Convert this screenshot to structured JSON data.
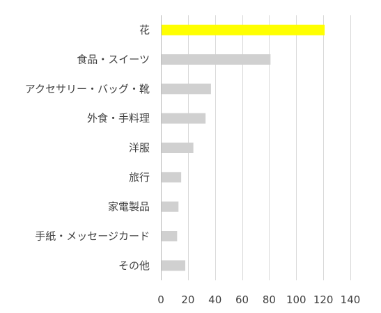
{
  "chart_data": {
    "type": "bar",
    "orientation": "horizontal",
    "categories": [
      "花",
      "食品・スイーツ",
      "アクセサリー・バッグ・靴",
      "外食・手料理",
      "洋服",
      "旅行",
      "家電製品",
      "手紙・メッセージカード",
      "その他"
    ],
    "values": [
      121,
      81,
      37,
      33,
      24,
      15,
      13,
      12,
      18
    ],
    "xlim": [
      0,
      140
    ],
    "xticks": [
      0,
      20,
      40,
      60,
      80,
      100,
      120,
      140
    ],
    "grid": "vertical",
    "legend": "none",
    "colors": {
      "highlight": "#ffff00",
      "bar": "#d0d0d0",
      "grid": "#d9d9d9",
      "axis": "#bfbfbf",
      "text": "#404040"
    },
    "highlight_index": 0
  }
}
